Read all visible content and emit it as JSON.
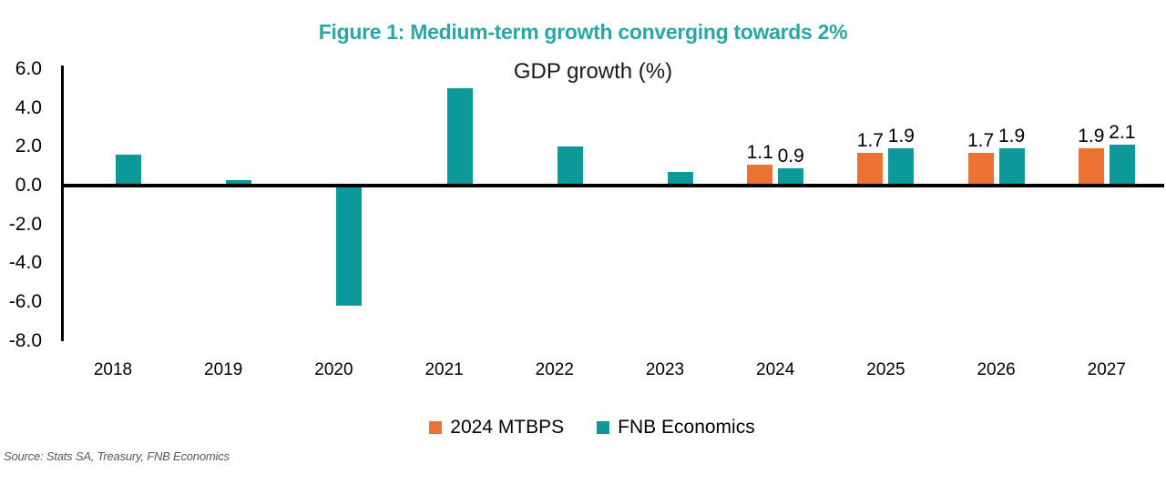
{
  "title": "Figure 1: Medium-term growth converging towards 2%",
  "subtitle": "GDP growth (%)",
  "source": "Source: Stats SA, Treasury, FNB Economics",
  "colors": {
    "title_teal": "#2AA7A5",
    "mtbps_orange": "#EB7231",
    "fnb_teal": "#0D989A",
    "axis_black": "#000000",
    "source_gray": "#595959"
  },
  "legend": {
    "items": [
      {
        "label": "2024 MTBPS",
        "color_key": "mtbps_orange"
      },
      {
        "label": "FNB Economics",
        "color_key": "fnb_teal"
      }
    ]
  },
  "y_axis": {
    "ticks": [
      "6.0",
      "4.0",
      "2.0",
      "0.0",
      "-2.0",
      "-4.0",
      "-6.0",
      "-8.0"
    ]
  },
  "chart_data": {
    "type": "bar",
    "title": "Figure 1: Medium-term growth converging towards 2%",
    "axis_title": "GDP growth (%)",
    "categories": [
      "2018",
      "2019",
      "2020",
      "2021",
      "2022",
      "2023",
      "2024",
      "2025",
      "2026",
      "2027"
    ],
    "series": [
      {
        "name": "2024 MTBPS",
        "color_key": "mtbps_orange",
        "values": [
          null,
          null,
          null,
          null,
          null,
          null,
          1.1,
          1.7,
          1.7,
          1.9
        ],
        "data_labels": [
          null,
          null,
          null,
          null,
          null,
          null,
          "1.1",
          "1.7",
          "1.7",
          "1.9"
        ]
      },
      {
        "name": "FNB Economics",
        "color_key": "fnb_teal",
        "values": [
          1.6,
          0.3,
          -6.2,
          5.0,
          2.0,
          0.7,
          0.9,
          1.9,
          1.9,
          2.1
        ],
        "data_labels": [
          null,
          null,
          null,
          null,
          null,
          null,
          "0.9",
          "1.9",
          "1.9",
          "2.1"
        ]
      }
    ],
    "ylim": [
      -8.0,
      6.0
    ],
    "y_tick_step": 2.0,
    "grid": false,
    "legend_position": "bottom"
  }
}
